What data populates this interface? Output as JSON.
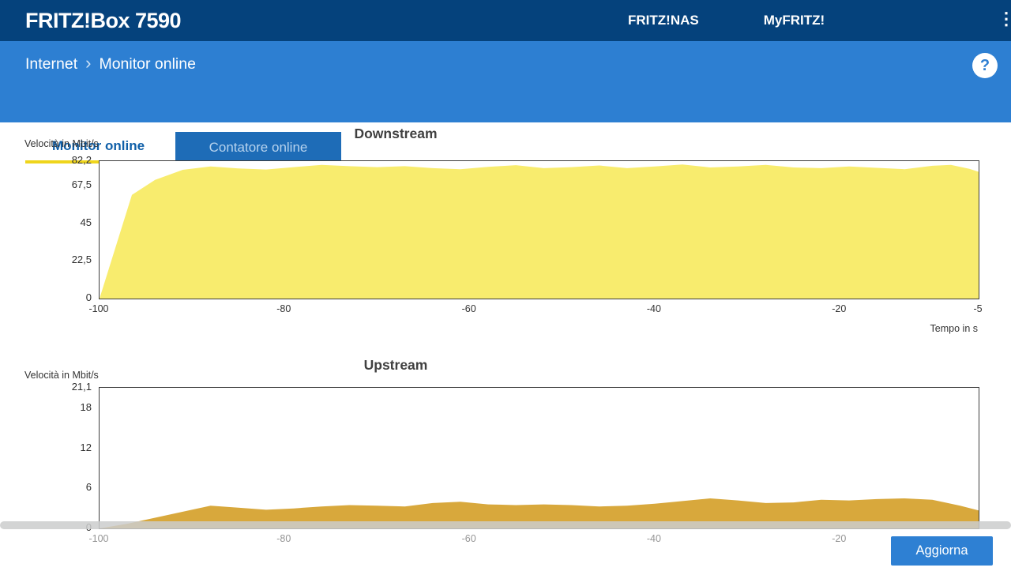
{
  "header": {
    "brand": "FRITZ!Box 7590",
    "nav": [
      {
        "label": "FRITZ!NAS"
      },
      {
        "label": "MyFRITZ!"
      }
    ]
  },
  "icons": {
    "menu": "⋮",
    "help": "?",
    "breadcrumb_separator": "›"
  },
  "breadcrumb": {
    "section": "Internet",
    "page": "Monitor online"
  },
  "tabs": [
    {
      "label": "Monitor online"
    },
    {
      "label": "Contatore online"
    }
  ],
  "actions": {
    "refresh_label": "Aggiorna"
  },
  "colors": {
    "header_bg": "#05427c",
    "subheader_bg": "#2d7fd2",
    "tab_inactive_bg": "#1e6cb7",
    "tab_active_text": "#0f5fa8",
    "tab_underline": "#efd51c",
    "button_bg": "#2e80d3",
    "downstream_fill": "#f8ec6e",
    "upstream_fill": "#d8a83c"
  },
  "chart_data": [
    {
      "type": "area",
      "name": "downstream",
      "title": "Downstream",
      "y_axis_label": "Velocità in Mbit/s",
      "x_axis_label": "Tempo in s",
      "xlim": [
        -100,
        -5
      ],
      "ylim": [
        0,
        82.2
      ],
      "grid": false,
      "legend": false,
      "fill": "#f8ec6e",
      "tick_color": "#333333",
      "y_ticks": [
        {
          "label": "82,2",
          "value": 82.2
        },
        {
          "label": "67,5",
          "value": 67.5
        },
        {
          "label": "45",
          "value": 45
        },
        {
          "label": "22,5",
          "value": 22.5
        },
        {
          "label": "0",
          "value": 0
        }
      ],
      "x_ticks": [
        {
          "label": "-100",
          "value": -100
        },
        {
          "label": "-80",
          "value": -80
        },
        {
          "label": "-60",
          "value": -60
        },
        {
          "label": "-40",
          "value": -40
        },
        {
          "label": "-20",
          "value": -20
        },
        {
          "label": "-5",
          "value": -5
        }
      ],
      "x": [
        -100,
        -96.5,
        -94,
        -91,
        -88,
        -85,
        -82,
        -79,
        -76,
        -73,
        -70,
        -67,
        -64,
        -61,
        -58,
        -55,
        -52,
        -49,
        -46,
        -43,
        -40,
        -37,
        -34,
        -31,
        -28,
        -25,
        -22,
        -19,
        -16,
        -13,
        -10,
        -8,
        -6,
        -5
      ],
      "values": [
        0,
        62,
        71,
        77,
        79,
        77.8,
        77.2,
        78.6,
        80,
        79.2,
        78.6,
        79.2,
        78,
        77.4,
        78.8,
        79.8,
        78,
        78.6,
        79.6,
        78,
        79,
        80.2,
        78.4,
        79,
        80,
        78.4,
        78,
        79,
        78.2,
        77.4,
        79.4,
        80,
        77.6,
        75.8
      ]
    },
    {
      "type": "area",
      "name": "upstream",
      "title": "Upstream",
      "y_axis_label": "Velocità in Mbit/s",
      "xlim": [
        -100,
        -5
      ],
      "ylim": [
        0,
        21.1
      ],
      "grid": false,
      "legend": false,
      "fill": "#d8a83c",
      "tick_color": "#959595",
      "y_ticks": [
        {
          "label": "21,1",
          "value": 21.1
        },
        {
          "label": "18",
          "value": 18
        },
        {
          "label": "12",
          "value": 12
        },
        {
          "label": "6",
          "value": 6
        },
        {
          "label": "0",
          "value": 0
        }
      ],
      "x_ticks": [
        {
          "label": "-100",
          "value": -100
        },
        {
          "label": "-80",
          "value": -80
        },
        {
          "label": "-60",
          "value": -60
        },
        {
          "label": "-40",
          "value": -40
        },
        {
          "label": "-20",
          "value": -20
        }
      ],
      "x": [
        -100,
        -97,
        -94,
        -91,
        -88,
        -85,
        -82,
        -79,
        -76,
        -73,
        -70,
        -67,
        -64,
        -61,
        -58,
        -55,
        -52,
        -49,
        -46,
        -43,
        -40,
        -37,
        -34,
        -31,
        -28,
        -25,
        -22,
        -19,
        -16,
        -13,
        -10,
        -7,
        -5
      ],
      "values": [
        0,
        0.7,
        1.6,
        2.5,
        3.4,
        3.1,
        2.8,
        3.0,
        3.3,
        3.5,
        3.4,
        3.3,
        3.8,
        4.0,
        3.6,
        3.5,
        3.6,
        3.5,
        3.3,
        3.4,
        3.7,
        4.1,
        4.5,
        4.2,
        3.8,
        3.9,
        4.3,
        4.2,
        4.4,
        4.5,
        4.3,
        3.4,
        2.7
      ]
    }
  ]
}
